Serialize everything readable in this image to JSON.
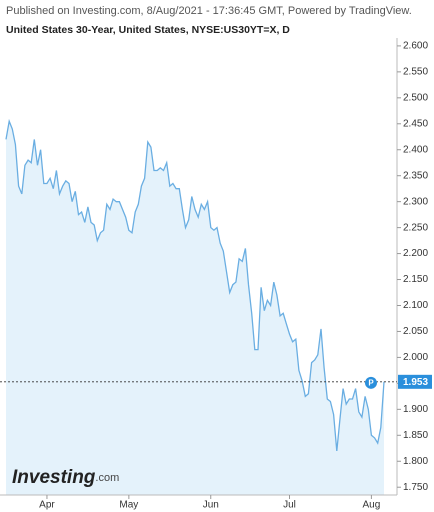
{
  "header": {
    "published": "Published on Investing.com, 8/Aug/2021 - 17:36:45 GMT, Powered by TradingView.",
    "instrument": "United States 30-Year, United States, NYSE:US30YT=X, D"
  },
  "logo": {
    "brand": "Investing",
    "suffix": ".com"
  },
  "chart_data": {
    "type": "area",
    "price_badge": "P",
    "color": "#6aaee2",
    "fill": "#e4f2fb",
    "categories": [
      null,
      null,
      null,
      null,
      null,
      null,
      null,
      null,
      null,
      null,
      null,
      null,
      null,
      "Apr",
      null,
      null,
      null,
      null,
      null,
      null,
      null,
      null,
      null,
      null,
      null,
      null,
      null,
      null,
      null,
      null,
      null,
      null,
      null,
      null,
      null,
      null,
      null,
      null,
      null,
      "May",
      null,
      null,
      null,
      null,
      null,
      null,
      null,
      null,
      null,
      null,
      null,
      null,
      null,
      null,
      null,
      null,
      null,
      null,
      null,
      null,
      null,
      null,
      null,
      null,
      null,
      "Jun",
      null,
      null,
      null,
      null,
      null,
      null,
      null,
      null,
      null,
      null,
      null,
      null,
      null,
      null,
      null,
      null,
      null,
      null,
      null,
      null,
      null,
      null,
      null,
      null,
      "Jul",
      null,
      null,
      null,
      null,
      null,
      null,
      null,
      null,
      null,
      null,
      null,
      null,
      null,
      null,
      null,
      null,
      null,
      null,
      null,
      null,
      null,
      null,
      null,
      null,
      null,
      "Aug",
      null,
      null,
      null,
      null
    ],
    "values": [
      2.42,
      2.455,
      2.44,
      2.41,
      2.33,
      2.315,
      2.37,
      2.38,
      2.375,
      2.42,
      2.37,
      2.4,
      2.335,
      2.335,
      2.345,
      2.325,
      2.36,
      2.315,
      2.33,
      2.34,
      2.335,
      2.3,
      2.32,
      2.275,
      2.28,
      2.26,
      2.29,
      2.26,
      2.255,
      2.225,
      2.24,
      2.245,
      2.295,
      2.285,
      2.305,
      2.3,
      2.3,
      2.285,
      2.27,
      2.245,
      2.24,
      2.28,
      2.295,
      2.33,
      2.345,
      2.415,
      2.405,
      2.36,
      2.36,
      2.365,
      2.36,
      2.375,
      2.33,
      2.335,
      2.325,
      2.325,
      2.285,
      2.25,
      2.265,
      2.31,
      2.285,
      2.27,
      2.295,
      2.285,
      2.3,
      2.25,
      2.245,
      2.25,
      2.22,
      2.205,
      2.165,
      2.125,
      2.14,
      2.145,
      2.19,
      2.185,
      2.21,
      2.14,
      2.085,
      2.015,
      2.015,
      2.135,
      2.09,
      2.11,
      2.1,
      2.145,
      2.12,
      2.08,
      2.085,
      2.065,
      2.045,
      2.03,
      2.035,
      1.975,
      1.955,
      1.925,
      1.93,
      1.99,
      1.995,
      2.005,
      2.055,
      1.98,
      1.92,
      1.915,
      1.89,
      1.82,
      1.88,
      1.94,
      1.91,
      1.92,
      1.92,
      1.94,
      1.895,
      1.885,
      1.925,
      1.9,
      1.85,
      1.845,
      1.835,
      1.865,
      1.953
    ],
    "ylim": [
      1.735,
      2.621
    ],
    "yticks": [
      {
        "value": 1.75,
        "label": "1.750"
      },
      {
        "value": 1.8,
        "label": "1.800"
      },
      {
        "value": 1.85,
        "label": "1.850"
      },
      {
        "value": 1.9,
        "label": "1.900"
      },
      {
        "value": 1.95,
        "label": "1.950"
      },
      {
        "value": 2.0,
        "label": "2.000"
      },
      {
        "value": 2.05,
        "label": "2.050"
      },
      {
        "value": 2.1,
        "label": "2.100"
      },
      {
        "value": 2.15,
        "label": "2.150"
      },
      {
        "value": 2.2,
        "label": "2.200"
      },
      {
        "value": 2.25,
        "label": "2.250"
      },
      {
        "value": 2.3,
        "label": "2.300"
      },
      {
        "value": 2.35,
        "label": "2.350"
      },
      {
        "value": 2.4,
        "label": "2.400"
      },
      {
        "value": 2.45,
        "label": "2.450"
      },
      {
        "value": 2.5,
        "label": "2.500"
      },
      {
        "value": 2.55,
        "label": "2.550"
      },
      {
        "value": 2.6,
        "label": "2.600"
      }
    ]
  }
}
